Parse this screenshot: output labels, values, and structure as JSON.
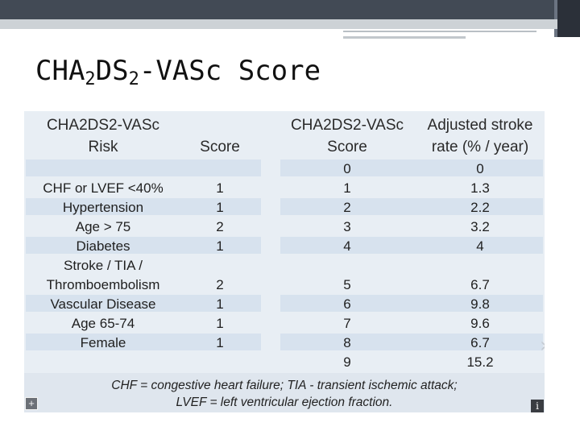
{
  "slide": {
    "title_parts": [
      "CHA",
      "2",
      "DS",
      "2",
      "-VASc Score"
    ]
  },
  "risk_table": {
    "headers": {
      "risk": [
        "CHA2DS2-VASc",
        "Risk"
      ],
      "score": "Score"
    },
    "rows": [
      {
        "risk": "",
        "score": ""
      },
      {
        "risk": "CHF or LVEF <40%",
        "score": "1"
      },
      {
        "risk": "Hypertension",
        "score": "1"
      },
      {
        "risk": "Age > 75",
        "score": "2"
      },
      {
        "risk": "Diabetes",
        "score": "1"
      },
      {
        "risk_lines": [
          "Stroke / TIA /",
          "Thromboembolism"
        ],
        "score": "2"
      },
      {
        "risk": "Vascular Disease",
        "score": "1"
      },
      {
        "risk": "Age 65-74",
        "score": "1"
      },
      {
        "risk": "Female",
        "score": "1"
      }
    ]
  },
  "stroke_table": {
    "headers": {
      "score": [
        "CHA2DS2-VASc",
        "Score"
      ],
      "rate": [
        "Adjusted stroke",
        "rate (% / year)"
      ]
    },
    "rows": [
      {
        "score": "0",
        "rate": "0"
      },
      {
        "score": "1",
        "rate": "1.3"
      },
      {
        "score": "2",
        "rate": "2.2"
      },
      {
        "score": "3",
        "rate": "3.2"
      },
      {
        "score": "4",
        "rate": "4"
      },
      {
        "score": "5",
        "rate": "6.7"
      },
      {
        "score": "6",
        "rate": "9.8"
      },
      {
        "score": "7",
        "rate": "9.6"
      },
      {
        "score": "8",
        "rate": "6.7"
      },
      {
        "score": "9",
        "rate": "15.2"
      }
    ]
  },
  "footnote": [
    "CHF = congestive heart failure; TIA - transient ischemic attack;",
    "LVEF = left ventricular ejection fraction."
  ],
  "icons": {
    "expand": "+",
    "info": "i",
    "chevron": "›"
  }
}
